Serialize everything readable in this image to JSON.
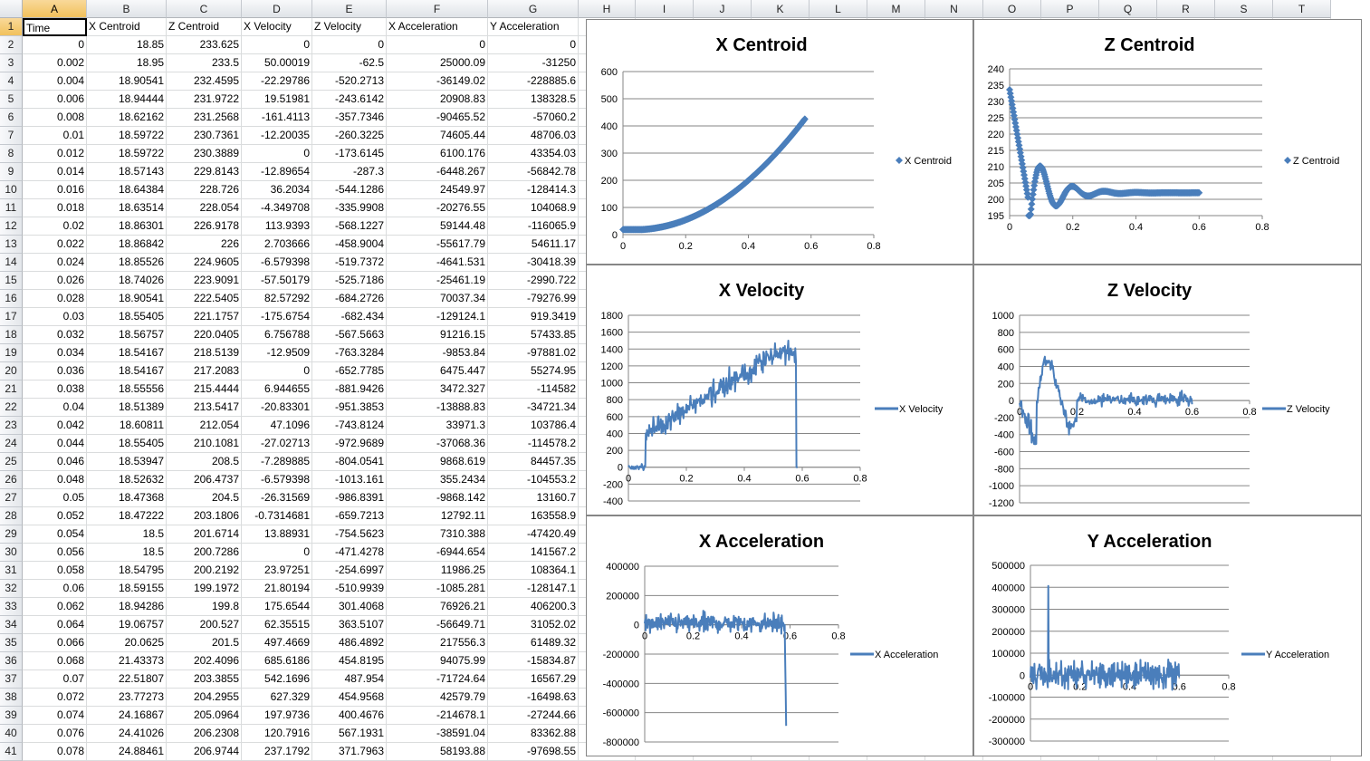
{
  "sheet": {
    "columns": [
      "A",
      "B",
      "C",
      "D",
      "E",
      "F",
      "G",
      "H",
      "I",
      "J",
      "K",
      "L",
      "M",
      "N",
      "O",
      "P",
      "Q",
      "R",
      "S",
      "T"
    ],
    "selected_column": "A",
    "active_cell": "A1",
    "headers": [
      "Time",
      "X Centroid",
      "Z Centroid",
      "X Velocity",
      "Z Velocity",
      "X Acceleration",
      "Y Acceleration"
    ],
    "rows": [
      [
        "0",
        "18.85",
        "233.625",
        "0",
        "0",
        "0",
        "0"
      ],
      [
        "0.002",
        "18.95",
        "233.5",
        "50.00019",
        "-62.5",
        "25000.09",
        "-31250"
      ],
      [
        "0.004",
        "18.90541",
        "232.4595",
        "-22.29786",
        "-520.2713",
        "-36149.02",
        "-228885.6"
      ],
      [
        "0.006",
        "18.94444",
        "231.9722",
        "19.51981",
        "-243.6142",
        "20908.83",
        "138328.5"
      ],
      [
        "0.008",
        "18.62162",
        "231.2568",
        "-161.4113",
        "-357.7346",
        "-90465.52",
        "-57060.2"
      ],
      [
        "0.01",
        "18.59722",
        "230.7361",
        "-12.20035",
        "-260.3225",
        "74605.44",
        "48706.03"
      ],
      [
        "0.012",
        "18.59722",
        "230.3889",
        "0",
        "-173.6145",
        "6100.176",
        "43354.03"
      ],
      [
        "0.014",
        "18.57143",
        "229.8143",
        "-12.89654",
        "-287.3",
        "-6448.267",
        "-56842.78"
      ],
      [
        "0.016",
        "18.64384",
        "228.726",
        "36.2034",
        "-544.1286",
        "24549.97",
        "-128414.3"
      ],
      [
        "0.018",
        "18.63514",
        "228.054",
        "-4.349708",
        "-335.9908",
        "-20276.55",
        "104068.9"
      ],
      [
        "0.02",
        "18.86301",
        "226.9178",
        "113.9393",
        "-568.1227",
        "59144.48",
        "-116065.9"
      ],
      [
        "0.022",
        "18.86842",
        "226",
        "2.703666",
        "-458.9004",
        "-55617.79",
        "54611.17"
      ],
      [
        "0.024",
        "18.85526",
        "224.9605",
        "-6.579398",
        "-519.7372",
        "-4641.531",
        "-30418.39"
      ],
      [
        "0.026",
        "18.74026",
        "223.9091",
        "-57.50179",
        "-525.7186",
        "-25461.19",
        "-2990.722"
      ],
      [
        "0.028",
        "18.90541",
        "222.5405",
        "82.57292",
        "-684.2726",
        "70037.34",
        "-79276.99"
      ],
      [
        "0.03",
        "18.55405",
        "221.1757",
        "-175.6754",
        "-682.434",
        "-129124.1",
        "919.3419"
      ],
      [
        "0.032",
        "18.56757",
        "220.0405",
        "6.756788",
        "-567.5663",
        "91216.15",
        "57433.85"
      ],
      [
        "0.034",
        "18.54167",
        "218.5139",
        "-12.9509",
        "-763.3284",
        "-9853.84",
        "-97881.02"
      ],
      [
        "0.036",
        "18.54167",
        "217.2083",
        "0",
        "-652.7785",
        "6475.447",
        "55274.95"
      ],
      [
        "0.038",
        "18.55556",
        "215.4444",
        "6.944655",
        "-881.9426",
        "3472.327",
        "-114582"
      ],
      [
        "0.04",
        "18.51389",
        "213.5417",
        "-20.83301",
        "-951.3853",
        "-13888.83",
        "-34721.34"
      ],
      [
        "0.042",
        "18.60811",
        "212.054",
        "47.1096",
        "-743.8124",
        "33971.3",
        "103786.4"
      ],
      [
        "0.044",
        "18.55405",
        "210.1081",
        "-27.02713",
        "-972.9689",
        "-37068.36",
        "-114578.2"
      ],
      [
        "0.046",
        "18.53947",
        "208.5",
        "-7.289885",
        "-804.0541",
        "9868.619",
        "84457.35"
      ],
      [
        "0.048",
        "18.52632",
        "206.4737",
        "-6.579398",
        "-1013.161",
        "355.2434",
        "-104553.2"
      ],
      [
        "0.05",
        "18.47368",
        "204.5",
        "-26.31569",
        "-986.8391",
        "-9868.142",
        "13160.7"
      ],
      [
        "0.052",
        "18.47222",
        "203.1806",
        "-0.7314681",
        "-659.7213",
        "12792.11",
        "163558.9"
      ],
      [
        "0.054",
        "18.5",
        "201.6714",
        "13.88931",
        "-754.5623",
        "7310.388",
        "-47420.49"
      ],
      [
        "0.056",
        "18.5",
        "200.7286",
        "0",
        "-471.4278",
        "-6944.654",
        "141567.2"
      ],
      [
        "0.058",
        "18.54795",
        "200.2192",
        "23.97251",
        "-254.6997",
        "11986.25",
        "108364.1"
      ],
      [
        "0.06",
        "18.59155",
        "199.1972",
        "21.80194",
        "-510.9939",
        "-1085.281",
        "-128147.1"
      ],
      [
        "0.062",
        "18.94286",
        "199.8",
        "175.6544",
        "301.4068",
        "76926.21",
        "406200.3"
      ],
      [
        "0.064",
        "19.06757",
        "200.527",
        "62.35515",
        "363.5107",
        "-56649.71",
        "31052.02"
      ],
      [
        "0.066",
        "20.0625",
        "201.5",
        "497.4669",
        "486.4892",
        "217556.3",
        "61489.32"
      ],
      [
        "0.068",
        "21.43373",
        "202.4096",
        "685.6186",
        "454.8195",
        "94075.99",
        "-15834.87"
      ],
      [
        "0.07",
        "22.51807",
        "203.3855",
        "542.1696",
        "487.954",
        "-71724.64",
        "16567.29"
      ],
      [
        "0.072",
        "23.77273",
        "204.2955",
        "627.329",
        "454.9568",
        "42579.79",
        "-16498.63"
      ],
      [
        "0.074",
        "24.16867",
        "205.0964",
        "197.9736",
        "400.4676",
        "-214678.1",
        "-27244.66"
      ],
      [
        "0.076",
        "24.41026",
        "206.2308",
        "120.7916",
        "567.1931",
        "-38591.04",
        "83362.88"
      ],
      [
        "0.078",
        "24.88461",
        "206.9744",
        "237.1792",
        "371.7963",
        "58193.88",
        "-97698.55"
      ]
    ]
  },
  "charts": [
    {
      "id": "x-centroid",
      "title": "X Centroid",
      "legend": "X Centroid",
      "marker": "diamond",
      "color": "#4a7ebb",
      "xticks": [
        "0",
        "0.2",
        "0.4",
        "0.6",
        "0.8"
      ],
      "yticks": [
        "0",
        "100",
        "200",
        "300",
        "400",
        "500",
        "600"
      ],
      "chart_data": {
        "type": "scatter",
        "xlim": [
          0,
          0.8
        ],
        "ylim": [
          0,
          600
        ],
        "model": "xcentroid",
        "x_end": 0.58
      }
    },
    {
      "id": "z-centroid",
      "title": "Z Centroid",
      "legend": "Z Centroid",
      "marker": "diamond",
      "color": "#4a7ebb",
      "xticks": [
        "0",
        "0.2",
        "0.4",
        "0.6",
        "0.8"
      ],
      "yticks": [
        "195",
        "200",
        "205",
        "210",
        "215",
        "220",
        "225",
        "230",
        "235",
        "240"
      ],
      "chart_data": {
        "type": "scatter",
        "xlim": [
          0,
          0.8
        ],
        "ylim": [
          195,
          240
        ],
        "model": "zcentroid",
        "x_end": 0.6
      }
    },
    {
      "id": "x-velocity",
      "title": "X Velocity",
      "legend": "X Velocity",
      "marker": "line",
      "color": "#4a7ebb",
      "xticks": [
        "0",
        "0.2",
        "0.4",
        "0.6",
        "0.8"
      ],
      "yticks": [
        "-400",
        "-200",
        "0",
        "200",
        "400",
        "600",
        "800",
        "1000",
        "1200",
        "1400",
        "1600",
        "1800"
      ],
      "chart_data": {
        "type": "line",
        "xlim": [
          0,
          0.8
        ],
        "ylim": [
          -400,
          1800
        ],
        "model": "xvelocity",
        "x_end": 0.584
      }
    },
    {
      "id": "z-velocity",
      "title": "Z Velocity",
      "legend": "Z Velocity",
      "marker": "line",
      "color": "#4a7ebb",
      "xticks": [
        "0",
        "0.2",
        "0.4",
        "0.6",
        "0.8"
      ],
      "yticks": [
        "-1200",
        "-1000",
        "-800",
        "-600",
        "-400",
        "-200",
        "0",
        "200",
        "400",
        "600",
        "800",
        "1000"
      ],
      "chart_data": {
        "type": "line",
        "xlim": [
          0,
          0.8
        ],
        "ylim": [
          -1200,
          1000
        ],
        "model": "zvelocity",
        "x_end": 0.6
      }
    },
    {
      "id": "x-acceleration",
      "title": "X Acceleration",
      "legend": "X Acceleration",
      "marker": "line",
      "color": "#4a7ebb",
      "xticks": [
        "0",
        "0.2",
        "0.4",
        "0.6",
        "0.8"
      ],
      "yticks": [
        "-800000",
        "-600000",
        "-400000",
        "-200000",
        "0",
        "200000",
        "400000"
      ],
      "chart_data": {
        "type": "line",
        "xlim": [
          0,
          0.8
        ],
        "ylim": [
          -800000,
          400000
        ],
        "model": "xacc",
        "x_end": 0.584
      }
    },
    {
      "id": "y-acceleration",
      "title": "Y Acceleration",
      "legend": "Y Acceleration",
      "marker": "line",
      "color": "#4a7ebb",
      "xticks": [
        "0",
        "0.2",
        "0.4",
        "0.6",
        "0.8"
      ],
      "yticks": [
        "-300000",
        "-200000",
        "-100000",
        "0",
        "100000",
        "200000",
        "300000",
        "400000",
        "500000"
      ],
      "chart_data": {
        "type": "line",
        "xlim": [
          0,
          0.8
        ],
        "ylim": [
          -300000,
          500000
        ],
        "model": "yacc",
        "x_end": 0.6
      }
    }
  ]
}
